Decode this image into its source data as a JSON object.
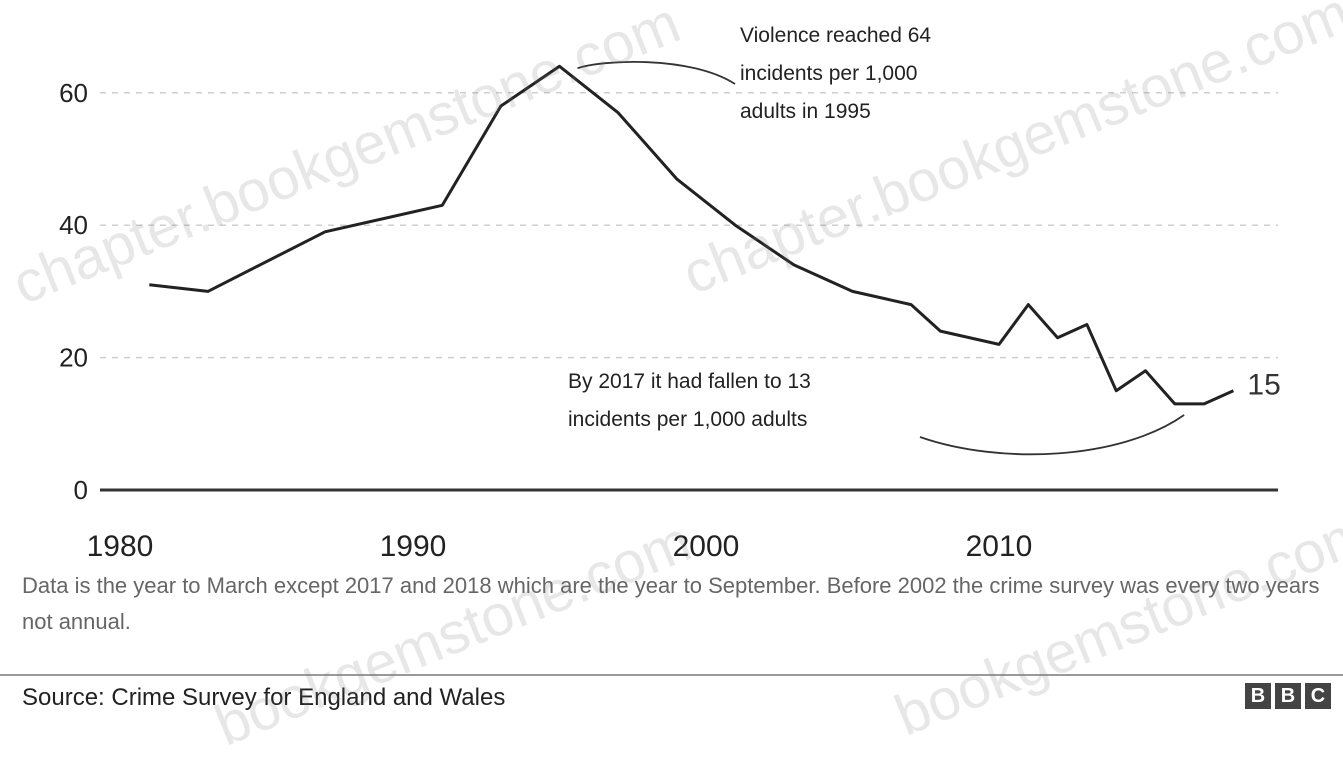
{
  "chart_data": {
    "type": "line",
    "title": "",
    "xlabel": "",
    "ylabel": "",
    "xlim": [
      1980,
      2018
    ],
    "ylim": [
      0,
      70
    ],
    "x_ticks": [
      "1980",
      "1990",
      "2000",
      "2010"
    ],
    "y_ticks": [
      "0",
      "20",
      "40",
      "60"
    ],
    "grid": "horizontal dashed",
    "series": [
      {
        "x": [
          1981,
          1983,
          1987,
          1991,
          1993,
          1995,
          1997,
          1999,
          2001,
          2003,
          2005,
          2007,
          2008,
          2010,
          2011,
          2012,
          2013,
          2014,
          2015,
          2016,
          2017,
          2018
        ],
        "y": [
          31,
          30,
          39,
          43,
          58,
          64,
          57,
          47,
          40,
          34,
          30,
          28,
          24,
          22,
          28,
          23,
          25,
          15,
          18,
          13,
          13,
          15
        ],
        "color": "#222222"
      }
    ],
    "end_label": "15",
    "annotations": [
      {
        "lines": [
          "Violence reached 64",
          "incidents per 1,000",
          "adults in 1995"
        ]
      },
      {
        "lines": [
          "By 2017 it had fallen to 13",
          "incidents per 1,000 adults"
        ]
      }
    ]
  },
  "footnote": "Data is the year to March except 2017 and 2018 which are the year to September. Before 2002 the crime survey was every two years not annual.",
  "source": "Source: Crime Survey for England and Wales",
  "logo": [
    "B",
    "B",
    "C"
  ],
  "watermarks": [
    "chapter.bookgemstone.com",
    "chapter.bookgemstone.com",
    "bookgemstone.com",
    "bookgemstone.com"
  ]
}
